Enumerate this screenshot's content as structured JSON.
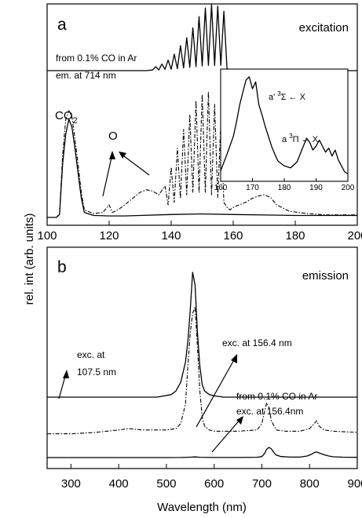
{
  "figure": {
    "y_axis_title": "rel. int (arb. units)",
    "x_axis_title": "Wavelength (nm)"
  },
  "chart_data": [
    {
      "type": "line",
      "panel_label": "a",
      "title": "excitation",
      "xlim": [
        100,
        200
      ],
      "x_ticks": [
        100,
        120,
        140,
        160,
        180,
        200
      ],
      "x_tick_labels": [
        "100",
        "120",
        "140",
        "160",
        "180",
        "200"
      ],
      "annotations": {
        "source_line1": "from 0.1% CO in Ar",
        "source_line2": "em. at 714 nm",
        "co2": "CO",
        "co2_sub": "2",
        "oxygen": "O"
      },
      "series": [
        {
          "line_style": "solid-top",
          "x": [
            100,
            128,
            132,
            134,
            135,
            136,
            137,
            138,
            139,
            140,
            141,
            142,
            143,
            144,
            145,
            146,
            147,
            148,
            149,
            150,
            151,
            152,
            153,
            154,
            155,
            156,
            157,
            158,
            160,
            175,
            200
          ],
          "values": [
            0,
            0,
            0,
            0.01,
            0.06,
            0.01,
            0.1,
            0.02,
            0.16,
            0.02,
            0.25,
            0.03,
            0.38,
            0.04,
            0.5,
            0.05,
            0.65,
            0.06,
            0.82,
            0.07,
            0.95,
            0.08,
            1.0,
            0.08,
            0.98,
            0.08,
            0.9,
            0.03,
            0,
            0,
            0
          ]
        },
        {
          "line_style": "solid-bottom",
          "x": [
            100,
            103,
            104,
            105,
            106,
            107,
            108,
            109,
            110,
            111,
            112,
            115,
            120,
            125,
            130,
            140,
            150,
            160,
            170,
            180,
            190,
            200
          ],
          "values": [
            0,
            0,
            0.03,
            0.55,
            0.85,
            1.0,
            0.92,
            0.7,
            0.45,
            0.2,
            0.05,
            0.02,
            0.015,
            0.015,
            0.02,
            0.03,
            0.035,
            0.03,
            0.025,
            0.02,
            0.02,
            0.02
          ]
        },
        {
          "line_style": "dash-dot-bottom",
          "x": [
            100,
            103,
            104,
            105,
            106,
            107,
            108,
            109,
            110,
            111,
            112,
            115,
            118,
            120,
            121,
            122,
            124,
            126,
            128,
            130,
            132,
            134,
            136,
            138,
            139,
            140,
            141,
            142,
            143,
            144,
            145,
            146,
            147,
            148,
            149,
            150,
            151,
            152,
            153,
            154,
            155,
            156,
            157,
            158,
            159,
            160,
            162,
            164,
            166,
            168,
            170,
            172,
            174,
            178,
            184,
            190,
            200
          ],
          "values": [
            0,
            0,
            0.03,
            0.5,
            0.78,
            0.85,
            0.8,
            0.62,
            0.42,
            0.2,
            0.06,
            0.03,
            0.04,
            0.1,
            0.04,
            0.05,
            0.08,
            0.12,
            0.16,
            0.2,
            0.22,
            0.21,
            0.18,
            0.25,
            0.1,
            0.4,
            0.12,
            0.55,
            0.15,
            0.7,
            0.18,
            0.82,
            0.2,
            0.93,
            0.2,
            0.98,
            0.2,
            1.0,
            0.18,
            0.9,
            0.16,
            0.75,
            0.12,
            0.08,
            0.06,
            0.08,
            0.1,
            0.12,
            0.15,
            0.17,
            0.18,
            0.16,
            0.1,
            0.05,
            0.03,
            0.02,
            0.02
          ]
        }
      ],
      "inset": {
        "xlim": [
          160,
          200
        ],
        "x_ticks": [
          160,
          170,
          180,
          190,
          200
        ],
        "x_tick_labels": [
          "160",
          "170",
          "180",
          "190",
          "200"
        ],
        "label_a_prime_1": "a' ",
        "label_a_prime_sup": "3",
        "label_a_prime_2": "Σ ← X",
        "label_a_1": "a ",
        "label_a_sup": "3",
        "label_a_2": "Π ← X",
        "series": [
          {
            "line_style": "solid",
            "x": [
              160,
              162,
              164,
              165,
              166,
              167,
              168,
              169,
              170,
              171,
              172,
              173,
              174,
              175,
              176,
              177,
              178,
              180,
              182,
              184,
              185,
              186,
              187,
              188,
              189,
              190,
              191,
              192,
              193,
              194,
              195,
              196,
              197,
              198,
              199,
              200
            ],
            "values": [
              0.05,
              0.22,
              0.4,
              0.55,
              0.72,
              0.85,
              0.97,
              1.0,
              0.88,
              0.95,
              0.72,
              0.62,
              0.5,
              0.4,
              0.3,
              0.22,
              0.15,
              0.1,
              0.08,
              0.14,
              0.22,
              0.3,
              0.38,
              0.34,
              0.26,
              0.3,
              0.36,
              0.3,
              0.24,
              0.28,
              0.2,
              0.26,
              0.16,
              0.1,
              0.04,
              0.02
            ]
          }
        ]
      }
    },
    {
      "type": "line",
      "panel_label": "b",
      "title": "emission",
      "xlim": [
        250,
        900
      ],
      "x_ticks": [
        300,
        400,
        500,
        600,
        700,
        800,
        900
      ],
      "x_tick_labels": [
        "300",
        "400",
        "500",
        "600",
        "700",
        "800",
        "900"
      ],
      "annotations": {
        "exc_107_line1": "exc. at",
        "exc_107_line2": "107.5 nm",
        "exc_156": "exc. at 156.4 nm",
        "co_line1": "from 0.1% CO in Ar",
        "co_line2": "exc. at 156.4nm"
      },
      "series": [
        {
          "line_style": "solid-top",
          "x": [
            250,
            400,
            480,
            510,
            520,
            530,
            540,
            545,
            550,
            555,
            560,
            565,
            570,
            575,
            580,
            590,
            600,
            620,
            650,
            700,
            750,
            800,
            900
          ],
          "values": [
            0,
            0,
            0,
            0.02,
            0.05,
            0.12,
            0.28,
            0.45,
            0.7,
            1.0,
            0.9,
            0.52,
            0.25,
            0.1,
            0.05,
            0.02,
            0.01,
            0,
            0,
            0,
            0,
            0,
            0
          ]
        },
        {
          "line_style": "dash-dot-middle",
          "x": [
            250,
            300,
            350,
            400,
            420,
            450,
            500,
            520,
            530,
            540,
            545,
            550,
            555,
            560,
            565,
            570,
            575,
            580,
            590,
            600,
            650,
            690,
            700,
            705,
            710,
            715,
            720,
            730,
            750,
            780,
            800,
            810,
            815,
            820,
            830,
            850,
            900
          ],
          "values": [
            0.02,
            0.02,
            0.03,
            0.05,
            0.06,
            0.05,
            0.05,
            0.06,
            0.1,
            0.25,
            0.55,
            0.8,
            0.95,
            1.0,
            0.7,
            0.35,
            0.15,
            0.08,
            0.05,
            0.04,
            0.04,
            0.05,
            0.1,
            0.18,
            0.26,
            0.22,
            0.12,
            0.05,
            0.04,
            0.04,
            0.06,
            0.1,
            0.12,
            0.08,
            0.05,
            0.04,
            0.03
          ]
        },
        {
          "line_style": "solid-bottom",
          "x": [
            250,
            400,
            500,
            530,
            550,
            560,
            570,
            600,
            650,
            690,
            700,
            705,
            710,
            715,
            720,
            725,
            730,
            740,
            760,
            780,
            795,
            805,
            810,
            815,
            820,
            830,
            840,
            850,
            870,
            900
          ],
          "values": [
            0,
            0,
            0,
            0.01,
            0.04,
            0.06,
            0.03,
            0.01,
            0.01,
            0.03,
            0.1,
            0.35,
            0.8,
            1.0,
            0.85,
            0.5,
            0.25,
            0.1,
            0.05,
            0.05,
            0.15,
            0.35,
            0.5,
            0.55,
            0.45,
            0.28,
            0.15,
            0.08,
            0.04,
            0.02
          ]
        }
      ]
    }
  ]
}
